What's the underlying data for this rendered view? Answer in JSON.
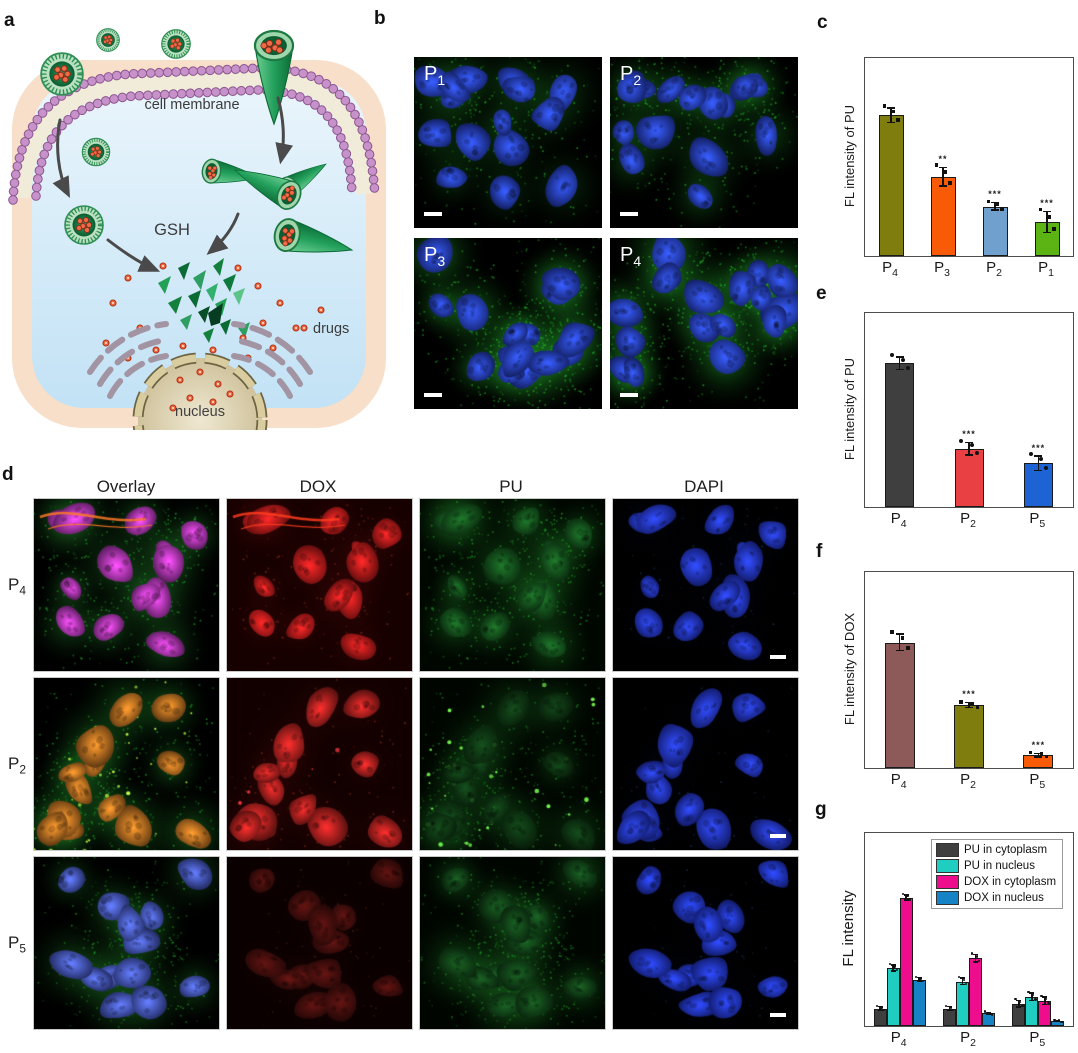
{
  "figure": {
    "panel_labels": {
      "a": "a",
      "b": "b",
      "c": "c",
      "d": "d",
      "e": "e",
      "f": "f",
      "g": "g"
    }
  },
  "panel_a": {
    "labels": {
      "cell_membrane": "cell membrane",
      "gsh": "GSH",
      "drugs": "drugs",
      "nucleus": "nucleus"
    }
  },
  "panel_b": {
    "image_labels": [
      [
        "P",
        "1"
      ],
      [
        "P",
        "2"
      ],
      [
        "P",
        "3"
      ],
      [
        "P",
        "4"
      ]
    ]
  },
  "panel_d": {
    "column_headers": [
      "Overlay",
      "DOX",
      "PU",
      "DAPI"
    ],
    "row_labels": [
      [
        "P",
        "4"
      ],
      [
        "P",
        "2"
      ],
      [
        "P",
        "5"
      ]
    ]
  },
  "chart_data": [
    {
      "id": "c",
      "type": "bar",
      "ylabel": "FL intensity of PU",
      "categories": [
        [
          "P",
          "4"
        ],
        [
          "P",
          "3"
        ],
        [
          "P",
          "2"
        ],
        [
          "P",
          "1"
        ]
      ],
      "values": [
        0.71,
        0.4,
        0.25,
        0.17
      ],
      "errors": [
        0.04,
        0.05,
        0.022,
        0.055
      ],
      "significance": [
        "",
        "**",
        "***",
        "***"
      ],
      "bar_colors": [
        "#7e7d0e",
        "#f95a06",
        "#6fa0ce",
        "#5cb414"
      ],
      "ylim": [
        0,
        1
      ],
      "grid": false
    },
    {
      "id": "e",
      "type": "bar",
      "ylabel": "FL intensity of PU",
      "categories": [
        [
          "P",
          "4"
        ],
        [
          "P",
          "2"
        ],
        [
          "P",
          "5"
        ]
      ],
      "values": [
        0.74,
        0.3,
        0.225
      ],
      "errors": [
        0.035,
        0.035,
        0.04
      ],
      "significance": [
        "",
        "***",
        "***"
      ],
      "bar_colors": [
        "#3f3f3f",
        "#e84043",
        "#1e63d3"
      ],
      "ylim": [
        0,
        1
      ],
      "grid": false
    },
    {
      "id": "f",
      "type": "bar",
      "ylabel": "FL intensity of DOX",
      "categories": [
        [
          "P",
          "4"
        ],
        [
          "P",
          "2"
        ],
        [
          "P",
          "5"
        ]
      ],
      "values": [
        0.64,
        0.32,
        0.065
      ],
      "errors": [
        0.045,
        0.015,
        0.012
      ],
      "significance": [
        "",
        "***",
        "***"
      ],
      "bar_colors": [
        "#8d5a59",
        "#7e7d0e",
        "#f95a06"
      ],
      "ylim": [
        0,
        1
      ],
      "grid": false
    },
    {
      "id": "g",
      "type": "grouped_bar",
      "ylabel": "FL intensity",
      "categories": [
        [
          "P",
          "4"
        ],
        [
          "P",
          "2"
        ],
        [
          "P",
          "5"
        ]
      ],
      "series": [
        {
          "name": "PU in cytoplasm",
          "color": "#3f3f3f",
          "values": [
            0.09,
            0.09,
            0.115
          ],
          "errors": [
            0.012,
            0.012,
            0.02
          ]
        },
        {
          "name": "PU in nucleus",
          "color": "#1fcec0",
          "values": [
            0.3,
            0.23,
            0.15
          ],
          "errors": [
            0.018,
            0.02,
            0.022
          ]
        },
        {
          "name": "DOX in cytoplasm",
          "color": "#ee0d8c",
          "values": [
            0.665,
            0.35,
            0.13
          ],
          "errors": [
            0.015,
            0.022,
            0.022
          ]
        },
        {
          "name": "DOX in nucleus",
          "color": "#1583c5",
          "values": [
            0.24,
            0.065,
            0.025
          ],
          "errors": [
            0.012,
            0.008,
            0.006
          ]
        }
      ],
      "legend_position": "upper center-right",
      "ylim": [
        0,
        1
      ],
      "grid": false
    }
  ]
}
